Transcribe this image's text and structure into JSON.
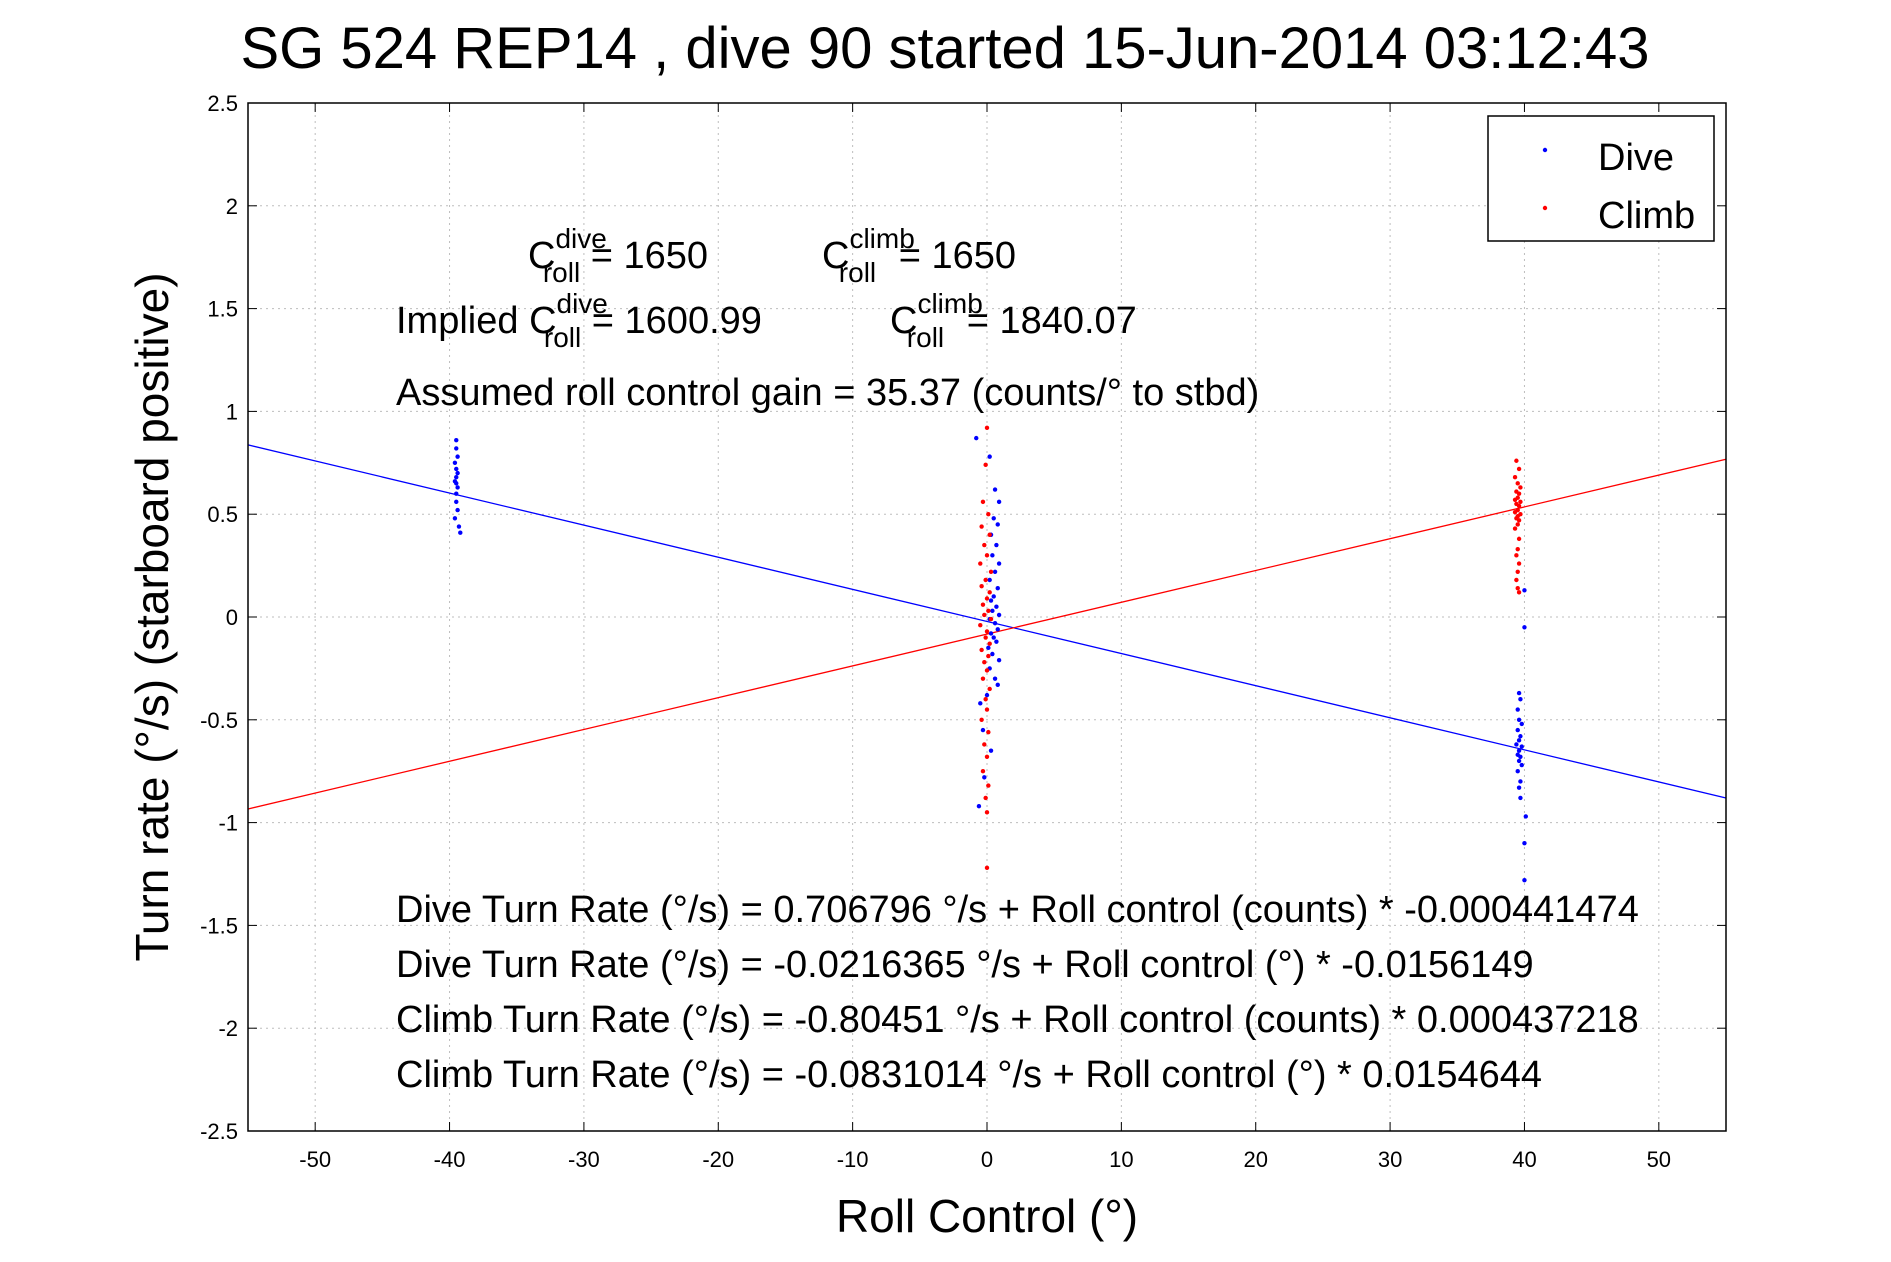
{
  "chart_data": {
    "type": "scatter",
    "title": "SG 524   REP14  , dive 90 started 15-Jun-2014 03:12:43",
    "xlabel": "Roll Control (°)",
    "ylabel": "Turn rate (°/s)  (starboard positive)",
    "xlim": [
      -55,
      55
    ],
    "ylim": [
      -2.5,
      2.5
    ],
    "xticks": [
      -50,
      -40,
      -30,
      -20,
      -10,
      0,
      10,
      20,
      30,
      40,
      50
    ],
    "yticks": [
      -2.5,
      -2,
      -1.5,
      -1,
      -0.5,
      0,
      0.5,
      1,
      1.5,
      2,
      2.5
    ],
    "xtick_labels": [
      "-50",
      "-40",
      "-30",
      "-20",
      "-10",
      "0",
      "10",
      "20",
      "30",
      "40",
      "50"
    ],
    "ytick_labels": [
      "-2.5",
      "-2",
      "-1.5",
      "-1",
      "-0.5",
      "0",
      "0.5",
      "1",
      "1.5",
      "2",
      "2.5"
    ],
    "grid": true,
    "legend_position": "top-right",
    "series": [
      {
        "name": "Dive",
        "color": "#0000ff",
        "marker": "dot",
        "points": [
          [
            -39.5,
            0.86
          ],
          [
            -39.5,
            0.82
          ],
          [
            -39.4,
            0.78
          ],
          [
            -39.6,
            0.75
          ],
          [
            -39.5,
            0.72
          ],
          [
            -39.4,
            0.7
          ],
          [
            -39.5,
            0.68
          ],
          [
            -39.6,
            0.66
          ],
          [
            -39.5,
            0.65
          ],
          [
            -39.4,
            0.63
          ],
          [
            -39.5,
            0.6
          ],
          [
            -39.5,
            0.56
          ],
          [
            -39.4,
            0.52
          ],
          [
            -39.6,
            0.48
          ],
          [
            -39.3,
            0.44
          ],
          [
            -39.2,
            0.41
          ],
          [
            -0.8,
            0.87
          ],
          [
            0.2,
            0.78
          ],
          [
            0.6,
            0.62
          ],
          [
            0.9,
            0.56
          ],
          [
            0.5,
            0.48
          ],
          [
            0.8,
            0.45
          ],
          [
            0.3,
            0.4
          ],
          [
            0.7,
            0.35
          ],
          [
            0.4,
            0.3
          ],
          [
            0.9,
            0.26
          ],
          [
            0.6,
            0.22
          ],
          [
            0.2,
            0.18
          ],
          [
            0.8,
            0.14
          ],
          [
            0.5,
            0.1
          ],
          [
            0.3,
            0.08
          ],
          [
            0.7,
            0.05
          ],
          [
            0.4,
            0.03
          ],
          [
            0.9,
            0.01
          ],
          [
            0.2,
            -0.01
          ],
          [
            0.6,
            -0.03
          ],
          [
            0.8,
            -0.06
          ],
          [
            0.3,
            -0.08
          ],
          [
            0.5,
            -0.1
          ],
          [
            0.7,
            -0.12
          ],
          [
            0.1,
            -0.15
          ],
          [
            0.4,
            -0.18
          ],
          [
            0.9,
            -0.21
          ],
          [
            0.2,
            -0.25
          ],
          [
            0.6,
            -0.3
          ],
          [
            0.0,
            -0.38
          ],
          [
            -0.5,
            -0.42
          ],
          [
            0.8,
            -0.33
          ],
          [
            -0.3,
            -0.55
          ],
          [
            0.3,
            -0.65
          ],
          [
            -0.2,
            -0.78
          ],
          [
            -0.6,
            -0.92
          ],
          [
            39.6,
            -0.37
          ],
          [
            39.7,
            -0.4
          ],
          [
            39.5,
            -0.45
          ],
          [
            39.6,
            -0.5
          ],
          [
            39.8,
            -0.52
          ],
          [
            39.5,
            -0.55
          ],
          [
            39.7,
            -0.58
          ],
          [
            39.6,
            -0.6
          ],
          [
            39.4,
            -0.62
          ],
          [
            39.8,
            -0.63
          ],
          [
            39.6,
            -0.65
          ],
          [
            39.5,
            -0.67
          ],
          [
            39.7,
            -0.68
          ],
          [
            39.6,
            -0.7
          ],
          [
            39.8,
            -0.72
          ],
          [
            39.5,
            -0.75
          ],
          [
            39.7,
            -0.8
          ],
          [
            39.6,
            -0.83
          ],
          [
            39.7,
            -0.88
          ],
          [
            40.0,
            -1.1
          ],
          [
            40.1,
            -0.97
          ],
          [
            40.0,
            -1.28
          ],
          [
            40.0,
            -0.05
          ],
          [
            40.0,
            0.13
          ]
        ]
      },
      {
        "name": "Climb",
        "color": "#ff0000",
        "marker": "dot",
        "points": [
          [
            0.0,
            0.92
          ],
          [
            -0.1,
            0.74
          ],
          [
            -0.3,
            0.56
          ],
          [
            0.1,
            0.5
          ],
          [
            -0.4,
            0.44
          ],
          [
            0.2,
            0.4
          ],
          [
            -0.2,
            0.35
          ],
          [
            0.0,
            0.3
          ],
          [
            -0.5,
            0.26
          ],
          [
            0.3,
            0.22
          ],
          [
            -0.1,
            0.18
          ],
          [
            -0.4,
            0.15
          ],
          [
            0.2,
            0.12
          ],
          [
            0.0,
            0.09
          ],
          [
            -0.3,
            0.06
          ],
          [
            0.1,
            0.03
          ],
          [
            -0.2,
            0.01
          ],
          [
            0.3,
            -0.01
          ],
          [
            -0.5,
            -0.04
          ],
          [
            0.0,
            -0.07
          ],
          [
            -0.1,
            -0.1
          ],
          [
            0.2,
            -0.13
          ],
          [
            -0.4,
            -0.16
          ],
          [
            0.1,
            -0.19
          ],
          [
            -0.2,
            -0.22
          ],
          [
            0.0,
            -0.26
          ],
          [
            -0.3,
            -0.3
          ],
          [
            0.2,
            -0.35
          ],
          [
            -0.1,
            -0.4
          ],
          [
            0.0,
            -0.45
          ],
          [
            -0.4,
            -0.5
          ],
          [
            0.1,
            -0.56
          ],
          [
            -0.2,
            -0.62
          ],
          [
            0.0,
            -0.68
          ],
          [
            -0.3,
            -0.75
          ],
          [
            0.1,
            -0.82
          ],
          [
            -0.1,
            -0.88
          ],
          [
            0.0,
            -0.95
          ],
          [
            0.0,
            -1.22
          ],
          [
            39.4,
            0.76
          ],
          [
            39.6,
            0.72
          ],
          [
            39.3,
            0.68
          ],
          [
            39.5,
            0.65
          ],
          [
            39.7,
            0.63
          ],
          [
            39.4,
            0.61
          ],
          [
            39.6,
            0.6
          ],
          [
            39.5,
            0.58
          ],
          [
            39.3,
            0.57
          ],
          [
            39.7,
            0.56
          ],
          [
            39.4,
            0.55
          ],
          [
            39.6,
            0.54
          ],
          [
            39.5,
            0.52
          ],
          [
            39.3,
            0.51
          ],
          [
            39.7,
            0.5
          ],
          [
            39.5,
            0.49
          ],
          [
            39.4,
            0.48
          ],
          [
            39.6,
            0.47
          ],
          [
            39.5,
            0.45
          ],
          [
            39.3,
            0.43
          ],
          [
            39.6,
            0.38
          ],
          [
            39.5,
            0.33
          ],
          [
            39.4,
            0.3
          ],
          [
            39.6,
            0.26
          ],
          [
            39.5,
            0.22
          ],
          [
            39.4,
            0.18
          ],
          [
            39.5,
            0.14
          ],
          [
            39.6,
            0.12
          ]
        ]
      }
    ],
    "fit_lines": [
      {
        "series": "Dive",
        "color": "#0000ff",
        "intercept": -0.0216365,
        "slope": -0.0156149
      },
      {
        "series": "Climb",
        "color": "#ff0000",
        "intercept": -0.0831014,
        "slope": 0.0154644
      }
    ],
    "annotations": {
      "c_dive": {
        "base": "C",
        "sup": "dive",
        "sub": "roll",
        "rest": " = 1650"
      },
      "c_climb": {
        "base": "C",
        "sup": "climb",
        "sub": "roll",
        "rest": " = 1650"
      },
      "implied_prefix": "Implied ",
      "implied_dive": {
        "base": "C",
        "sup": "dive",
        "sub": "roll",
        "rest": " = 1600.99"
      },
      "implied_climb": {
        "base": "C",
        "sup": "climb",
        "sub": "roll",
        "rest": " = 1840.07"
      },
      "gain": "Assumed roll control gain = 35.37 (counts/° to stbd)",
      "eq1": "Dive Turn Rate (°/s) = 0.706796 °/s + Roll control (counts) * -0.000441474",
      "eq2": "Dive Turn Rate (°/s) = -0.0216365 °/s + Roll control (°) * -0.0156149",
      "eq3": "Climb Turn Rate (°/s) = -0.80451 °/s + Roll control (counts) * 0.000437218",
      "eq4": "Climb Turn Rate (°/s) = -0.0831014 °/s + Roll control (°) * 0.0154644"
    }
  }
}
